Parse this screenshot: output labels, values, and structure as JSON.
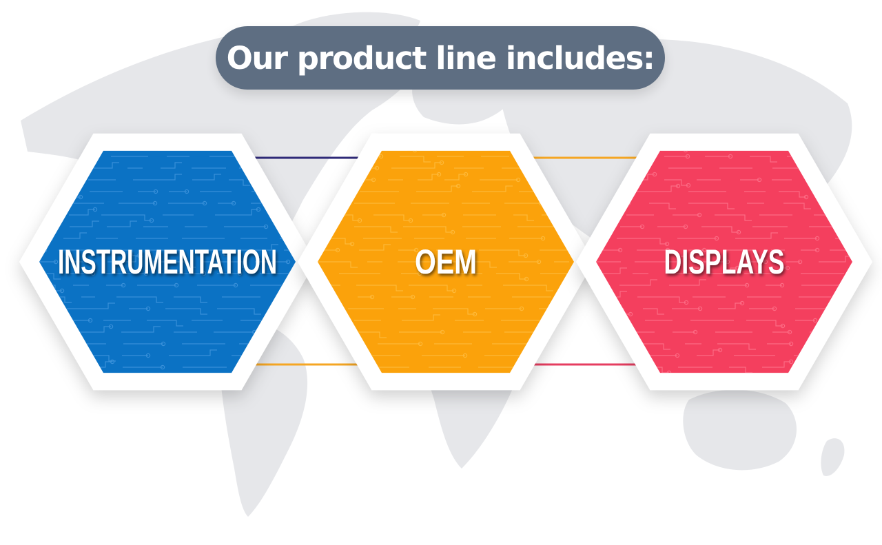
{
  "header": {
    "title": "Our product line includes:"
  },
  "products": [
    {
      "label": "INSTRUMENTATION",
      "color": "#0b72c4",
      "trace": "#4a9be0"
    },
    {
      "label": "OEM",
      "color": "#fba20b",
      "trace": "#ffc14a"
    },
    {
      "label": "DISPLAYS",
      "color": "#f43f5e",
      "trace": "#ff7b92"
    }
  ],
  "connectors": [
    {
      "color": "#2f2a78"
    },
    {
      "color": "#f5a623"
    },
    {
      "color": "#f5a623"
    },
    {
      "color": "#e63d60"
    }
  ],
  "colors": {
    "map": "#e6e7ea",
    "pill": "#5e6e82",
    "hex_frame": "#ffffff"
  }
}
